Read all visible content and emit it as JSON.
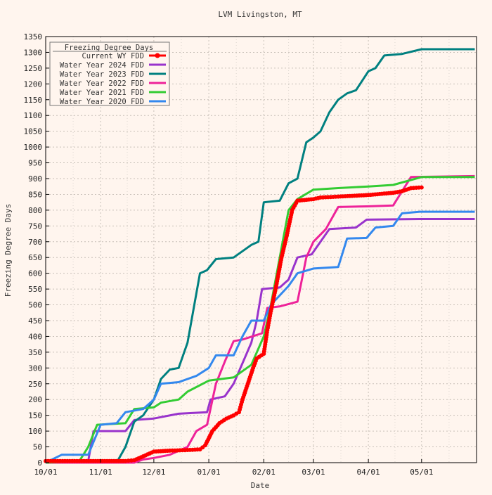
{
  "chart_data": {
    "type": "line",
    "title": "LVM Livingston, MT",
    "xlabel": "Date",
    "ylabel": "Freezing Degree Days",
    "xlim": [
      "10/01",
      "06/01"
    ],
    "ylim": [
      0,
      1350
    ],
    "grid": true,
    "legend_title": "Freezing Degree Days",
    "legend_position": "top-left",
    "x_tick_labels": [
      "10/01",
      "11/01",
      "12/01",
      "01/01",
      "02/01",
      "03/01",
      "04/01",
      "05/01"
    ],
    "y_ticks": [
      0,
      50,
      100,
      150,
      200,
      250,
      300,
      350,
      400,
      450,
      500,
      550,
      600,
      650,
      700,
      750,
      800,
      850,
      900,
      950,
      1000,
      1050,
      1100,
      1150,
      1200,
      1250,
      1300,
      1350
    ],
    "series": [
      {
        "name": "Current WY FDD",
        "color": "#ff0000",
        "marker": true,
        "points": [
          [
            "10/01",
            5
          ],
          [
            "10/20",
            5
          ],
          [
            "11/15",
            5
          ],
          [
            "11/20",
            8
          ],
          [
            "11/25",
            20
          ],
          [
            "12/01",
            35
          ],
          [
            "12/10",
            38
          ],
          [
            "12/20",
            40
          ],
          [
            "12/27",
            42
          ],
          [
            "12/30",
            55
          ],
          [
            "01/03",
            100
          ],
          [
            "01/07",
            125
          ],
          [
            "01/11",
            140
          ],
          [
            "01/15",
            150
          ],
          [
            "01/18",
            160
          ],
          [
            "01/20",
            200
          ],
          [
            "01/23",
            250
          ],
          [
            "01/26",
            300
          ],
          [
            "01/28",
            330
          ],
          [
            "02/01",
            345
          ],
          [
            "02/03",
            420
          ],
          [
            "02/05",
            480
          ],
          [
            "02/08",
            560
          ],
          [
            "02/11",
            650
          ],
          [
            "02/14",
            720
          ],
          [
            "02/17",
            800
          ],
          [
            "02/20",
            830
          ],
          [
            "03/01",
            835
          ],
          [
            "03/05",
            840
          ],
          [
            "03/15",
            843
          ],
          [
            "04/01",
            848
          ],
          [
            "04/15",
            855
          ],
          [
            "04/20",
            860
          ],
          [
            "04/25",
            870
          ],
          [
            "05/01",
            872
          ]
        ]
      },
      {
        "name": "Water Year 2024 FDD",
        "color": "#9933cc",
        "marker": false,
        "points": [
          [
            "10/01",
            0
          ],
          [
            "10/25",
            5
          ],
          [
            "10/28",
            100
          ],
          [
            "11/15",
            100
          ],
          [
            "11/20",
            135
          ],
          [
            "12/01",
            140
          ],
          [
            "12/15",
            155
          ],
          [
            "12/31",
            160
          ],
          [
            "01/02",
            200
          ],
          [
            "01/10",
            210
          ],
          [
            "01/15",
            250
          ],
          [
            "01/25",
            380
          ],
          [
            "01/28",
            450
          ],
          [
            "01/31",
            550
          ],
          [
            "02/10",
            555
          ],
          [
            "02/15",
            580
          ],
          [
            "02/20",
            650
          ],
          [
            "02/28",
            660
          ],
          [
            "03/05",
            700
          ],
          [
            "03/10",
            740
          ],
          [
            "03/25",
            745
          ],
          [
            "03/31",
            770
          ],
          [
            "04/30",
            772
          ],
          [
            "05/31",
            772
          ]
        ]
      },
      {
        "name": "Water Year 2023 FDD",
        "color": "#008080",
        "marker": false,
        "points": [
          [
            "10/01",
            0
          ],
          [
            "11/10",
            0
          ],
          [
            "11/15",
            50
          ],
          [
            "11/20",
            130
          ],
          [
            "11/25",
            150
          ],
          [
            "12/01",
            200
          ],
          [
            "12/05",
            265
          ],
          [
            "12/10",
            295
          ],
          [
            "12/15",
            300
          ],
          [
            "12/20",
            380
          ],
          [
            "12/27",
            600
          ],
          [
            "12/31",
            610
          ],
          [
            "01/05",
            645
          ],
          [
            "01/15",
            650
          ],
          [
            "01/25",
            690
          ],
          [
            "01/29",
            700
          ],
          [
            "02/01",
            825
          ],
          [
            "02/10",
            830
          ],
          [
            "02/15",
            885
          ],
          [
            "02/20",
            900
          ],
          [
            "02/25",
            1015
          ],
          [
            "03/01",
            1030
          ],
          [
            "03/05",
            1050
          ],
          [
            "03/10",
            1110
          ],
          [
            "03/15",
            1150
          ],
          [
            "03/20",
            1170
          ],
          [
            "03/25",
            1180
          ],
          [
            "04/01",
            1240
          ],
          [
            "04/05",
            1250
          ],
          [
            "04/10",
            1290
          ],
          [
            "04/20",
            1295
          ],
          [
            "05/01",
            1310
          ],
          [
            "05/31",
            1310
          ]
        ]
      },
      {
        "name": "Water Year 2022 FDD",
        "color": "#ee2299",
        "marker": false,
        "points": [
          [
            "10/01",
            0
          ],
          [
            "11/20",
            0
          ],
          [
            "11/25",
            10
          ],
          [
            "12/01",
            15
          ],
          [
            "12/10",
            25
          ],
          [
            "12/20",
            50
          ],
          [
            "12/25",
            100
          ],
          [
            "12/31",
            120
          ],
          [
            "01/05",
            250
          ],
          [
            "01/10",
            320
          ],
          [
            "01/15",
            385
          ],
          [
            "01/20",
            390
          ],
          [
            "01/31",
            410
          ],
          [
            "02/03",
            490
          ],
          [
            "02/10",
            495
          ],
          [
            "02/20",
            510
          ],
          [
            "02/25",
            650
          ],
          [
            "03/01",
            700
          ],
          [
            "03/08",
            740
          ],
          [
            "03/15",
            810
          ],
          [
            "03/31",
            812
          ],
          [
            "04/15",
            815
          ],
          [
            "04/20",
            860
          ],
          [
            "04/25",
            905
          ],
          [
            "05/31",
            908
          ]
        ]
      },
      {
        "name": "Water Year 2021 FDD",
        "color": "#33cc33",
        "marker": false,
        "points": [
          [
            "10/01",
            0
          ],
          [
            "10/20",
            5
          ],
          [
            "10/25",
            50
          ],
          [
            "10/30",
            120
          ],
          [
            "11/15",
            125
          ],
          [
            "11/20",
            170
          ],
          [
            "12/01",
            175
          ],
          [
            "12/05",
            190
          ],
          [
            "12/15",
            200
          ],
          [
            "12/20",
            225
          ],
          [
            "01/01",
            260
          ],
          [
            "01/15",
            270
          ],
          [
            "01/25",
            310
          ],
          [
            "02/01",
            400
          ],
          [
            "02/05",
            500
          ],
          [
            "02/10",
            650
          ],
          [
            "02/15",
            800
          ],
          [
            "02/20",
            835
          ],
          [
            "03/01",
            865
          ],
          [
            "03/15",
            870
          ],
          [
            "04/01",
            875
          ],
          [
            "04/15",
            880
          ],
          [
            "05/01",
            905
          ],
          [
            "05/31",
            905
          ]
        ]
      },
      {
        "name": "Water Year 2020 FDD",
        "color": "#3388ee",
        "marker": false,
        "points": [
          [
            "10/01",
            0
          ],
          [
            "10/10",
            25
          ],
          [
            "10/25",
            25
          ],
          [
            "11/01",
            120
          ],
          [
            "11/10",
            125
          ],
          [
            "11/15",
            160
          ],
          [
            "11/25",
            170
          ],
          [
            "12/01",
            200
          ],
          [
            "12/05",
            250
          ],
          [
            "12/15",
            255
          ],
          [
            "12/25",
            275
          ],
          [
            "01/01",
            300
          ],
          [
            "01/05",
            340
          ],
          [
            "01/15",
            340
          ],
          [
            "01/20",
            400
          ],
          [
            "01/25",
            450
          ],
          [
            "02/01",
            450
          ],
          [
            "02/05",
            500
          ],
          [
            "02/15",
            560
          ],
          [
            "02/20",
            600
          ],
          [
            "03/01",
            615
          ],
          [
            "03/15",
            620
          ],
          [
            "03/20",
            710
          ],
          [
            "03/31",
            712
          ],
          [
            "04/05",
            745
          ],
          [
            "04/15",
            750
          ],
          [
            "04/20",
            790
          ],
          [
            "04/30",
            795
          ],
          [
            "05/31",
            795
          ]
        ]
      }
    ]
  }
}
